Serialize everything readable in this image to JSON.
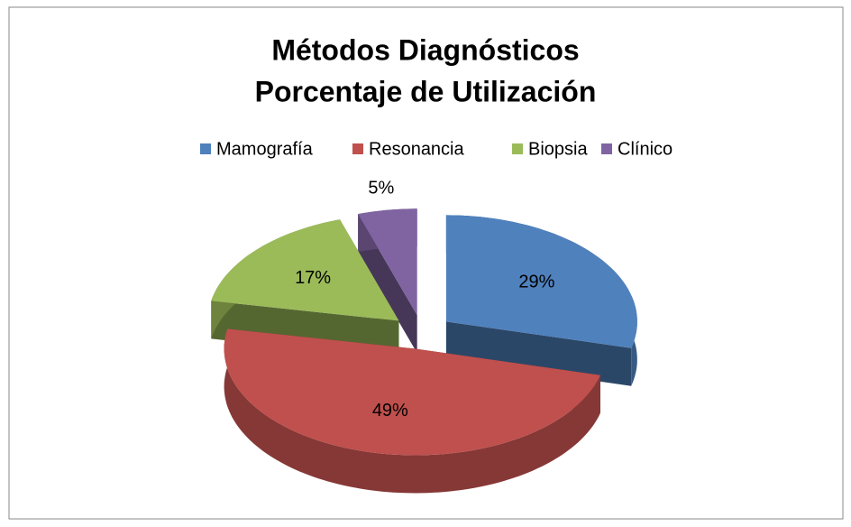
{
  "chart_data": {
    "type": "pie3d",
    "title": "Métodos Diagnósticos",
    "subtitle": "Porcentaje de Utilización",
    "categories": [
      "Mamografía",
      "Resonancia",
      "Biopsia",
      "Clínico"
    ],
    "values": [
      29,
      49,
      17,
      5
    ],
    "value_labels": [
      "29%",
      "49%",
      "17%",
      "5%"
    ],
    "colors": [
      "#4f81bd",
      "#c0504d",
      "#9bbb59",
      "#8064a2"
    ],
    "legend": "top"
  }
}
